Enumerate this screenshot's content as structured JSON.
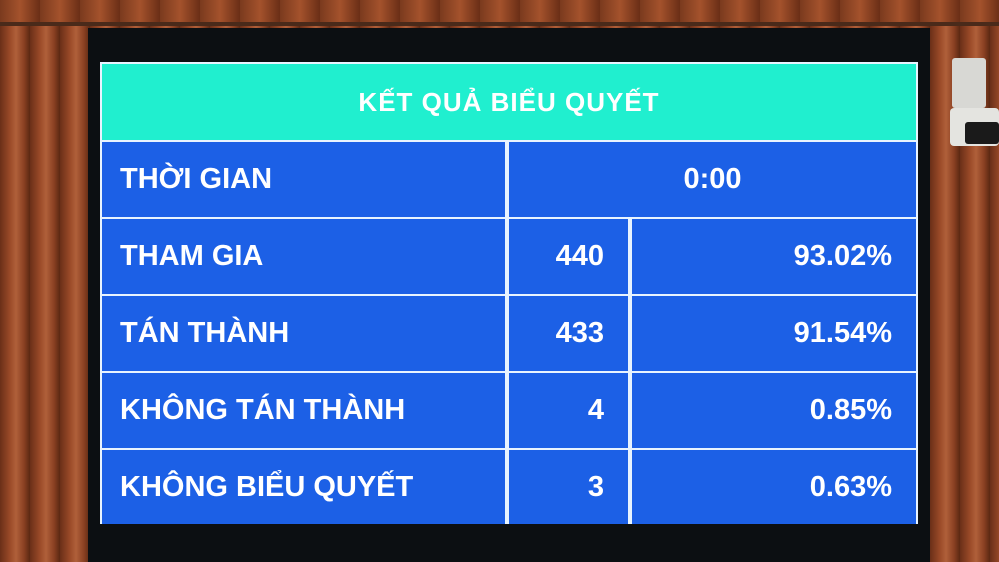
{
  "title": "KẾT QUẢ BIỂU QUYẾT",
  "time": {
    "label": "THỜI GIAN",
    "value": "0:00"
  },
  "rows": [
    {
      "label": "THAM GIA",
      "count": "440",
      "percent": "93.02%"
    },
    {
      "label": "TÁN THÀNH",
      "count": "433",
      "percent": "91.54%"
    },
    {
      "label": "KHÔNG TÁN THÀNH",
      "count": "4",
      "percent": "0.85%"
    },
    {
      "label": "KHÔNG BIỂU QUYẾT",
      "count": "3",
      "percent": "0.63%"
    }
  ],
  "colors": {
    "header": "#20efcf",
    "cells": "#1c60e6",
    "text": "#ffffff"
  }
}
